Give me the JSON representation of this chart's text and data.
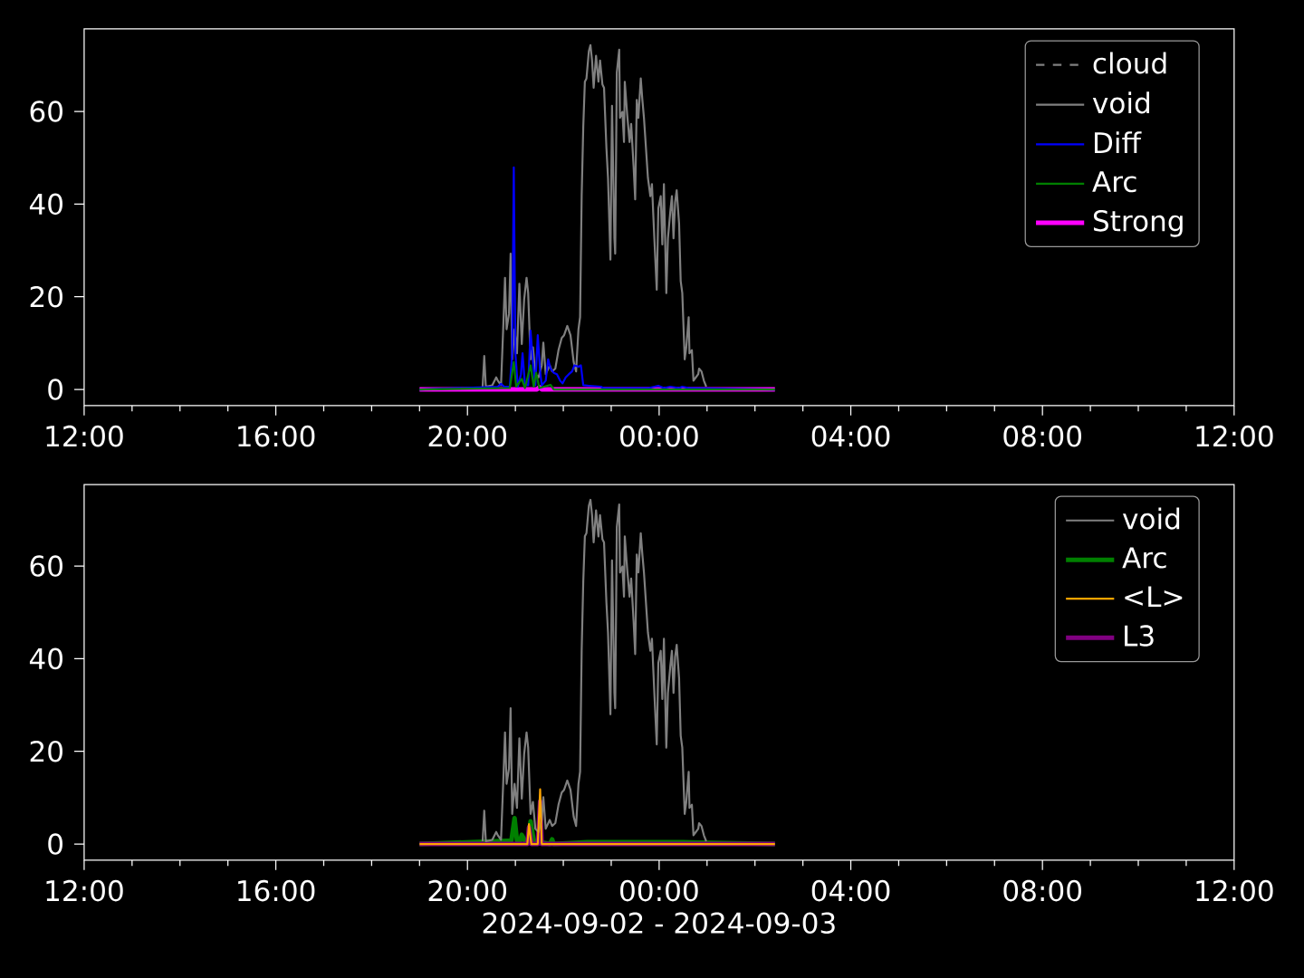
{
  "chart_data": [
    {
      "type": "line",
      "xlim": [
        "2024-09-02T12:00",
        "2024-09-03T12:00"
      ],
      "xticks": [
        {
          "value": "2024-09-02T12:00",
          "label": "12:00"
        },
        {
          "value": "2024-09-02T16:00",
          "label": "16:00"
        },
        {
          "value": "2024-09-02T20:00",
          "label": "20:00"
        },
        {
          "value": "2024-09-03T00:00",
          "label": "00:00"
        },
        {
          "value": "2024-09-03T04:00",
          "label": "04:00"
        },
        {
          "value": "2024-09-03T08:00",
          "label": "08:00"
        },
        {
          "value": "2024-09-03T12:00",
          "label": "12:00"
        }
      ],
      "ylim": [
        -3.5,
        77.8
      ],
      "yticks": [
        0,
        20,
        40,
        60
      ],
      "legend": "top right",
      "series": [
        {
          "name": "cloud",
          "color": "#808080",
          "line_style": "dashed"
        },
        {
          "name": "void",
          "color": "#808080",
          "x": [
            "2024-09-02T20:19",
            "2024-09-02T20:21",
            "2024-09-02T20:23",
            "2024-09-02T20:31",
            "2024-09-02T20:36",
            "2024-09-02T20:38",
            "2024-09-02T20:42",
            "2024-09-02T20:45",
            "2024-09-02T20:47",
            "2024-09-02T20:49",
            "2024-09-02T20:52",
            "2024-09-02T20:54",
            "2024-09-02T20:56",
            "2024-09-02T20:59",
            "2024-09-02T21:02",
            "2024-09-02T21:05",
            "2024-09-02T21:08",
            "2024-09-02T21:11",
            "2024-09-02T21:14",
            "2024-09-02T21:16",
            "2024-09-02T21:19",
            "2024-09-02T21:22",
            "2024-09-02T21:25",
            "2024-09-02T21:29",
            "2024-09-02T21:33",
            "2024-09-02T21:35",
            "2024-09-02T21:38",
            "2024-09-02T21:43",
            "2024-09-02T21:46",
            "2024-09-02T21:50",
            "2024-09-02T21:54",
            "2024-09-02T21:58",
            "2024-09-02T22:01",
            "2024-09-02T22:05",
            "2024-09-02T22:09",
            "2024-09-02T22:13",
            "2024-09-02T22:16",
            "2024-09-02T22:19",
            "2024-09-02T22:21",
            "2024-09-02T22:23",
            "2024-09-02T22:25",
            "2024-09-02T22:27",
            "2024-09-02T22:29",
            "2024-09-02T22:32",
            "2024-09-02T22:34",
            "2024-09-02T22:36",
            "2024-09-02T22:38",
            "2024-09-02T22:41",
            "2024-09-02T22:44",
            "2024-09-02T22:46",
            "2024-09-02T22:49",
            "2024-09-02T22:51",
            "2024-09-02T22:54",
            "2024-09-02T22:56",
            "2024-09-02T22:59",
            "2024-09-02T23:01",
            "2024-09-02T23:04",
            "2024-09-02T23:05",
            "2024-09-02T23:07",
            "2024-09-02T23:10",
            "2024-09-02T23:11",
            "2024-09-02T23:14",
            "2024-09-02T23:16",
            "2024-09-02T23:17",
            "2024-09-02T23:20",
            "2024-09-02T23:23",
            "2024-09-02T23:25",
            "2024-09-02T23:28",
            "2024-09-02T23:30",
            "2024-09-02T23:32",
            "2024-09-02T23:34",
            "2024-09-02T23:37",
            "2024-09-02T23:39",
            "2024-09-02T23:41",
            "2024-09-02T23:43",
            "2024-09-02T23:46",
            "2024-09-02T23:49",
            "2024-09-02T23:51",
            "2024-09-02T23:54",
            "2024-09-02T23:57",
            "2024-09-02T23:59",
            "2024-09-03T00:02",
            "2024-09-03T00:04",
            "2024-09-03T00:06",
            "2024-09-03T00:09",
            "2024-09-03T00:11",
            "2024-09-03T00:14",
            "2024-09-03T00:16",
            "2024-09-03T00:18",
            "2024-09-03T00:20",
            "2024-09-03T00:22",
            "2024-09-03T00:25",
            "2024-09-03T00:27",
            "2024-09-03T00:29",
            "2024-09-03T00:32",
            "2024-09-03T00:34",
            "2024-09-03T00:37",
            "2024-09-03T00:38",
            "2024-09-03T00:41",
            "2024-09-03T00:43",
            "2024-09-03T00:46",
            "2024-09-03T00:49",
            "2024-09-03T00:50",
            "2024-09-03T00:53",
            "2024-09-03T00:56",
            "2024-09-03T00:59"
          ],
          "values": [
            0.6,
            7.2,
            0.6,
            0.9,
            2.6,
            1.9,
            0.9,
            14.3,
            24.1,
            13.0,
            16.3,
            29.3,
            6.5,
            13.0,
            7.8,
            22.8,
            9.8,
            19.5,
            24.1,
            20.8,
            6.5,
            9.1,
            3.3,
            2.6,
            5.2,
            10.1,
            3.3,
            5.2,
            3.9,
            4.5,
            8.5,
            11.1,
            11.7,
            13.7,
            11.7,
            5.9,
            3.9,
            13.0,
            15.6,
            41.7,
            56.7,
            66.4,
            67.1,
            73.0,
            74.3,
            71.0,
            65.1,
            72.0,
            66.4,
            71.0,
            65.8,
            65.1,
            52.1,
            45.6,
            28.0,
            61.2,
            32.6,
            29.3,
            68.4,
            73.3,
            58.6,
            59.9,
            53.4,
            66.4,
            59.3,
            53.4,
            57.3,
            48.2,
            41.0,
            62.5,
            58.6,
            67.1,
            62.5,
            58.6,
            53.4,
            45.6,
            41.7,
            44.3,
            32.6,
            21.5,
            39.1,
            41.7,
            31.3,
            44.3,
            20.8,
            32.6,
            38.4,
            41.7,
            32.6,
            40.4,
            43.0,
            35.8,
            23.4,
            20.8,
            6.5,
            9.1,
            15.6,
            7.8,
            8.5,
            1.9,
            2.6,
            3.3,
            4.5,
            3.9,
            1.9,
            0.6
          ]
        },
        {
          "name": "Diff",
          "color": "#0000ff",
          "x": [
            "2024-09-02T19:00",
            "2024-09-02T20:38",
            "2024-09-02T20:42",
            "2024-09-02T20:46",
            "2024-09-02T20:53",
            "2024-09-02T20:56",
            "2024-09-02T20:58",
            "2024-09-02T21:00",
            "2024-09-02T21:03",
            "2024-09-02T21:07",
            "2024-09-02T21:09",
            "2024-09-02T21:12",
            "2024-09-02T21:16",
            "2024-09-02T21:19",
            "2024-09-02T21:22",
            "2024-09-02T21:25",
            "2024-09-02T21:28",
            "2024-09-02T21:31",
            "2024-09-02T21:33",
            "2024-09-02T21:38",
            "2024-09-02T21:41",
            "2024-09-02T21:44",
            "2024-09-02T21:48",
            "2024-09-02T21:52",
            "2024-09-02T21:56",
            "2024-09-02T21:59",
            "2024-09-02T22:03",
            "2024-09-02T22:07",
            "2024-09-02T22:11",
            "2024-09-02T22:14",
            "2024-09-02T22:19",
            "2024-09-02T22:22",
            "2024-09-02T22:25",
            "2024-09-02T22:32",
            "2024-09-02T22:47",
            "2024-09-02T22:50",
            "2024-09-02T23:47",
            "2024-09-02T23:59",
            "2024-09-03T00:06",
            "2024-09-03T00:14",
            "2024-09-03T00:25",
            "2024-09-03T00:29",
            "2024-09-03T00:37",
            "2024-09-03T02:25"
          ],
          "values": [
            0,
            0.6,
            1.2,
            0.6,
            0.6,
            7.8,
            47.9,
            7.8,
            0.6,
            3.3,
            7.8,
            0.9,
            0.9,
            12.7,
            5.9,
            0.9,
            11.7,
            3.9,
            0.9,
            1.9,
            6.5,
            4.5,
            3.6,
            3.3,
            1.9,
            1.3,
            2.6,
            3.3,
            3.9,
            5.2,
            4.9,
            5.2,
            0.9,
            0.8,
            0.6,
            0.3,
            0.3,
            0.8,
            0.3,
            0.6,
            0.3,
            0.6,
            0.3,
            0
          ]
        },
        {
          "name": "Arc",
          "color": "#008000",
          "x": [
            "2024-09-02T19:00",
            "2024-09-02T20:53",
            "2024-09-02T20:58",
            "2024-09-02T21:01",
            "2024-09-02T21:08",
            "2024-09-02T21:12",
            "2024-09-02T21:19",
            "2024-09-02T21:23",
            "2024-09-02T21:26",
            "2024-09-02T21:30",
            "2024-09-02T21:44",
            "2024-09-02T21:48",
            "2024-09-03T02:25"
          ],
          "values": [
            0,
            0.3,
            5.9,
            0.6,
            2.3,
            0.3,
            5.2,
            0.6,
            3.6,
            0.3,
            1.0,
            0,
            0
          ]
        },
        {
          "name": "Strong",
          "color": "#ff00ff",
          "x": [
            "2024-09-02T19:00",
            "2024-09-02T21:27",
            "2024-09-02T21:30",
            "2024-09-02T21:33",
            "2024-09-03T02:25"
          ],
          "values": [
            0,
            0,
            0.5,
            0,
            0
          ]
        }
      ]
    },
    {
      "type": "line",
      "xlabel": "2024-09-02 - 2024-09-03",
      "xlim": [
        "2024-09-02T12:00",
        "2024-09-03T12:00"
      ],
      "xticks": [
        {
          "value": "2024-09-02T12:00",
          "label": "12:00"
        },
        {
          "value": "2024-09-02T16:00",
          "label": "16:00"
        },
        {
          "value": "2024-09-02T20:00",
          "label": "20:00"
        },
        {
          "value": "2024-09-03T00:00",
          "label": "00:00"
        },
        {
          "value": "2024-09-03T04:00",
          "label": "04:00"
        },
        {
          "value": "2024-09-03T08:00",
          "label": "08:00"
        },
        {
          "value": "2024-09-03T12:00",
          "label": "12:00"
        }
      ],
      "ylim": [
        -3.5,
        77.6
      ],
      "yticks": [
        0,
        20,
        40,
        60
      ],
      "legend": "top right",
      "series": [
        {
          "name": "void",
          "color": "#808080",
          "x": [
            "2024-09-02T20:19",
            "2024-09-02T20:21",
            "2024-09-02T20:23",
            "2024-09-02T20:31",
            "2024-09-02T20:36",
            "2024-09-02T20:38",
            "2024-09-02T20:42",
            "2024-09-02T20:45",
            "2024-09-02T20:47",
            "2024-09-02T20:49",
            "2024-09-02T20:52",
            "2024-09-02T20:54",
            "2024-09-02T20:56",
            "2024-09-02T20:59",
            "2024-09-02T21:02",
            "2024-09-02T21:05",
            "2024-09-02T21:08",
            "2024-09-02T21:11",
            "2024-09-02T21:14",
            "2024-09-02T21:16",
            "2024-09-02T21:19",
            "2024-09-02T21:22",
            "2024-09-02T21:25",
            "2024-09-02T21:29",
            "2024-09-02T21:33",
            "2024-09-02T21:35",
            "2024-09-02T21:38",
            "2024-09-02T21:43",
            "2024-09-02T21:46",
            "2024-09-02T21:50",
            "2024-09-02T21:54",
            "2024-09-02T21:58",
            "2024-09-02T22:01",
            "2024-09-02T22:05",
            "2024-09-02T22:09",
            "2024-09-02T22:13",
            "2024-09-02T22:16",
            "2024-09-02T22:19",
            "2024-09-02T22:21",
            "2024-09-02T22:23",
            "2024-09-02T22:25",
            "2024-09-02T22:27",
            "2024-09-02T22:29",
            "2024-09-02T22:32",
            "2024-09-02T22:34",
            "2024-09-02T22:36",
            "2024-09-02T22:38",
            "2024-09-02T22:41",
            "2024-09-02T22:44",
            "2024-09-02T22:46",
            "2024-09-02T22:49",
            "2024-09-02T22:51",
            "2024-09-02T22:54",
            "2024-09-02T22:56",
            "2024-09-02T22:59",
            "2024-09-02T23:01",
            "2024-09-02T23:04",
            "2024-09-02T23:05",
            "2024-09-02T23:07",
            "2024-09-02T23:10",
            "2024-09-02T23:11",
            "2024-09-02T23:14",
            "2024-09-02T23:16",
            "2024-09-02T23:17",
            "2024-09-02T23:20",
            "2024-09-02T23:23",
            "2024-09-02T23:25",
            "2024-09-02T23:28",
            "2024-09-02T23:30",
            "2024-09-02T23:32",
            "2024-09-02T23:34",
            "2024-09-02T23:37",
            "2024-09-02T23:39",
            "2024-09-02T23:41",
            "2024-09-02T23:43",
            "2024-09-02T23:46",
            "2024-09-02T23:49",
            "2024-09-02T23:51",
            "2024-09-02T23:54",
            "2024-09-02T23:57",
            "2024-09-02T23:59",
            "2024-09-03T00:02",
            "2024-09-03T00:04",
            "2024-09-03T00:06",
            "2024-09-03T00:09",
            "2024-09-03T00:11",
            "2024-09-03T00:14",
            "2024-09-03T00:16",
            "2024-09-03T00:18",
            "2024-09-03T00:20",
            "2024-09-03T00:22",
            "2024-09-03T00:25",
            "2024-09-03T00:27",
            "2024-09-03T00:29",
            "2024-09-03T00:32",
            "2024-09-03T00:34",
            "2024-09-03T00:37",
            "2024-09-03T00:38",
            "2024-09-03T00:41",
            "2024-09-03T00:43",
            "2024-09-03T00:46",
            "2024-09-03T00:49",
            "2024-09-03T00:50",
            "2024-09-03T00:53",
            "2024-09-03T00:56",
            "2024-09-03T00:59"
          ],
          "values": [
            0.6,
            7.2,
            0.6,
            0.9,
            2.6,
            1.9,
            0.9,
            14.3,
            24.1,
            13.0,
            16.3,
            29.3,
            6.5,
            13.0,
            7.8,
            22.8,
            9.8,
            19.5,
            24.1,
            20.8,
            6.5,
            9.1,
            3.3,
            2.6,
            5.2,
            10.1,
            3.3,
            5.2,
            3.9,
            4.5,
            8.5,
            11.1,
            11.7,
            13.7,
            11.7,
            5.9,
            3.9,
            13.0,
            15.6,
            41.7,
            56.7,
            66.4,
            67.1,
            73.0,
            74.3,
            71.0,
            65.1,
            72.0,
            66.4,
            71.0,
            65.8,
            65.1,
            52.1,
            45.6,
            28.0,
            61.2,
            32.6,
            29.3,
            68.4,
            73.3,
            58.6,
            59.9,
            53.4,
            66.4,
            59.3,
            53.4,
            57.3,
            48.2,
            41.0,
            62.5,
            58.6,
            67.1,
            62.5,
            58.6,
            53.4,
            45.6,
            41.7,
            44.3,
            32.6,
            21.5,
            39.1,
            41.7,
            31.3,
            44.3,
            20.8,
            32.6,
            38.4,
            41.7,
            32.6,
            40.4,
            43.0,
            35.8,
            23.4,
            20.8,
            6.5,
            9.1,
            15.6,
            7.8,
            8.5,
            1.9,
            2.6,
            3.3,
            4.5,
            3.9,
            1.9,
            0.6
          ]
        },
        {
          "name": "Arc",
          "color": "#008000",
          "x": [
            "2024-09-02T19:00",
            "2024-09-02T20:49",
            "2024-09-02T20:55",
            "2024-09-02T20:59",
            "2024-09-02T21:02",
            "2024-09-02T21:06",
            "2024-09-02T21:08",
            "2024-09-02T21:12",
            "2024-09-02T21:16",
            "2024-09-02T21:19",
            "2024-09-02T21:23",
            "2024-09-02T21:43",
            "2024-09-02T21:46",
            "2024-09-02T21:48",
            "2024-09-02T22:30",
            "2024-09-02T22:42",
            "2024-09-03T00:30",
            "2024-09-03T02:25"
          ],
          "values": [
            0,
            0.7,
            0.7,
            5.6,
            0.7,
            0.7,
            2.0,
            0.7,
            0.7,
            4.9,
            0.7,
            0,
            1.0,
            0,
            0.4,
            0.4,
            0.4,
            0
          ]
        },
        {
          "name": "<L>",
          "color": "#ffa500",
          "x": [
            "2024-09-02T19:00",
            "2024-09-02T21:15",
            "2024-09-02T21:17",
            "2024-09-02T21:20",
            "2024-09-02T21:28",
            "2024-09-02T21:31",
            "2024-09-02T21:33",
            "2024-09-03T02:25"
          ],
          "values": [
            0,
            0,
            4.3,
            0,
            0,
            11.8,
            0,
            0
          ]
        },
        {
          "name": "L3",
          "color": "#800080",
          "x": [
            "2024-09-02T19:00",
            "2024-09-02T21:15",
            "2024-09-02T21:17",
            "2024-09-02T21:20",
            "2024-09-02T21:28",
            "2024-09-02T21:31",
            "2024-09-02T21:33",
            "2024-09-03T02:25"
          ],
          "values": [
            0,
            0,
            3.6,
            0,
            0,
            9.2,
            0,
            0
          ]
        }
      ]
    }
  ]
}
